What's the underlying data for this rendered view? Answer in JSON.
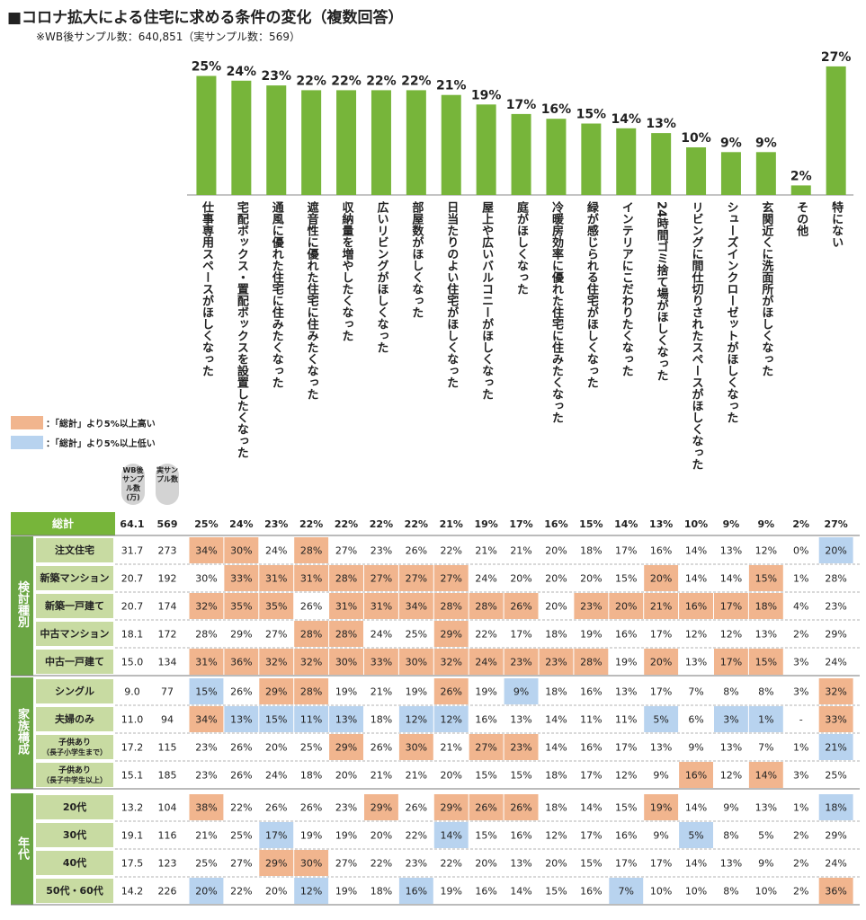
{
  "title": "■コロナ拡大による住宅に求める条件の変化（複数回答）",
  "subtitle": "※WB後サンプル数：640,851（実サンプル数：569）",
  "legend": {
    "high": "：「総計」より5%以上高い",
    "low": "：「総計」より5%以上低い"
  },
  "colors": {
    "bar": "#77b53a",
    "high": "#f1b58e",
    "low": "#b8d3ef",
    "group_band": "#6ba644",
    "row_label": "#c8dba2",
    "total_band": "#77b53a"
  },
  "column_headers": {
    "wb": "WB後サンプル数(万)",
    "actual": "実サンプル数"
  },
  "chart_data": {
    "type": "bar",
    "categories": [
      "仕事専用スペースがほしくなった",
      "宅配ボックス・置配ボックスを設置したくなった",
      "通風に優れた住宅に住みたくなった",
      "遮音性に優れた住宅に住みたくなった",
      "収納量を増やしたくなった",
      "広いリビングがほしくなった",
      "部屋数がほしくなった",
      "日当たりのよい住宅がほしくなった",
      "屋上や広いバルコニーがほしくなった",
      "庭がほしくなった",
      "冷暖房効率に優れた住宅に住みたくなった",
      "緑が感じられる住宅がほしくなった",
      "インテリアにこだわりたくなった",
      "24時間ゴミ捨て場がほしくなった",
      "リビングに間仕切りされたスペースがほしくなった",
      "シューズインクローゼットがほしくなった",
      "玄関近くに洗面所がほしくなった",
      "その他",
      "特にない"
    ],
    "values": [
      25,
      24,
      23,
      22,
      22,
      22,
      22,
      21,
      19,
      17,
      16,
      15,
      14,
      13,
      10,
      9,
      9,
      2,
      27
    ],
    "value_labels": [
      "25%",
      "24%",
      "23%",
      "22%",
      "22%",
      "22%",
      "22%",
      "21%",
      "19%",
      "17%",
      "16%",
      "15%",
      "14%",
      "13%",
      "10%",
      "9%",
      "9%",
      "2%",
      "27%"
    ],
    "ylim": [
      0,
      30
    ]
  },
  "table": {
    "total": {
      "label": "総計",
      "wb": "64.1",
      "n": "569",
      "values": [
        "25%",
        "24%",
        "23%",
        "22%",
        "22%",
        "22%",
        "22%",
        "21%",
        "19%",
        "17%",
        "16%",
        "15%",
        "14%",
        "13%",
        "10%",
        "9%",
        "9%",
        "2%",
        "27%"
      ]
    },
    "groups": [
      {
        "name": "検討種別",
        "rows": [
          {
            "label": "注文住宅",
            "wb": "31.7",
            "n": "273",
            "values": [
              "34%",
              "30%",
              "24%",
              "28%",
              "27%",
              "23%",
              "26%",
              "22%",
              "21%",
              "21%",
              "20%",
              "18%",
              "17%",
              "16%",
              "14%",
              "13%",
              "12%",
              "0%",
              "20%"
            ],
            "marks": [
              "h",
              "h",
              "",
              "h",
              "",
              "",
              "",
              "",
              "",
              "",
              "",
              "",
              "",
              "",
              "",
              "",
              "",
              "",
              "l"
            ]
          },
          {
            "label": "新築マンション",
            "wb": "20.7",
            "n": "192",
            "values": [
              "30%",
              "33%",
              "31%",
              "31%",
              "28%",
              "27%",
              "27%",
              "27%",
              "24%",
              "20%",
              "20%",
              "20%",
              "15%",
              "20%",
              "14%",
              "14%",
              "15%",
              "1%",
              "28%"
            ],
            "marks": [
              "",
              "h",
              "h",
              "h",
              "h",
              "h",
              "h",
              "h",
              "",
              "",
              "",
              "",
              "",
              "h",
              "",
              "",
              "h",
              "",
              ""
            ]
          },
          {
            "label": "新築一戸建て",
            "wb": "20.7",
            "n": "174",
            "values": [
              "32%",
              "35%",
              "35%",
              "26%",
              "31%",
              "31%",
              "34%",
              "28%",
              "28%",
              "26%",
              "20%",
              "23%",
              "20%",
              "21%",
              "16%",
              "17%",
              "18%",
              "4%",
              "23%"
            ],
            "marks": [
              "h",
              "h",
              "h",
              "",
              "h",
              "h",
              "h",
              "h",
              "h",
              "h",
              "",
              "h",
              "h",
              "h",
              "h",
              "h",
              "h",
              "",
              ""
            ]
          },
          {
            "label": "中古マンション",
            "wb": "18.1",
            "n": "172",
            "values": [
              "28%",
              "29%",
              "27%",
              "28%",
              "28%",
              "24%",
              "25%",
              "29%",
              "22%",
              "17%",
              "18%",
              "19%",
              "16%",
              "17%",
              "12%",
              "12%",
              "13%",
              "2%",
              "29%"
            ],
            "marks": [
              "",
              "",
              "",
              "h",
              "h",
              "",
              "",
              "h",
              "",
              "",
              "",
              "",
              "",
              "",
              "",
              "",
              "",
              "",
              ""
            ]
          },
          {
            "label": "中古一戸建て",
            "wb": "15.0",
            "n": "134",
            "values": [
              "31%",
              "36%",
              "32%",
              "32%",
              "30%",
              "33%",
              "30%",
              "32%",
              "24%",
              "23%",
              "23%",
              "28%",
              "19%",
              "20%",
              "13%",
              "17%",
              "15%",
              "3%",
              "24%"
            ],
            "marks": [
              "h",
              "h",
              "h",
              "h",
              "h",
              "h",
              "h",
              "h",
              "h",
              "h",
              "h",
              "h",
              "",
              "h",
              "",
              "h",
              "h",
              "",
              ""
            ]
          }
        ]
      },
      {
        "name": "家族構成",
        "rows": [
          {
            "label": "シングル",
            "wb": "9.0",
            "n": "77",
            "values": [
              "15%",
              "26%",
              "29%",
              "28%",
              "19%",
              "21%",
              "19%",
              "26%",
              "19%",
              "9%",
              "18%",
              "16%",
              "13%",
              "17%",
              "7%",
              "8%",
              "8%",
              "3%",
              "32%"
            ],
            "marks": [
              "l",
              "",
              "h",
              "h",
              "",
              "",
              "",
              "h",
              "",
              "l",
              "",
              "",
              "",
              "",
              "",
              "",
              "",
              "",
              "h"
            ]
          },
          {
            "label": "夫婦のみ",
            "wb": "11.0",
            "n": "94",
            "values": [
              "34%",
              "13%",
              "15%",
              "11%",
              "13%",
              "18%",
              "12%",
              "12%",
              "16%",
              "13%",
              "14%",
              "11%",
              "11%",
              "5%",
              "6%",
              "3%",
              "1%",
              "-",
              "33%"
            ],
            "marks": [
              "h",
              "l",
              "l",
              "l",
              "l",
              "",
              "l",
              "l",
              "",
              "",
              "",
              "",
              "",
              "l",
              "",
              "l",
              "l",
              "",
              "h"
            ]
          },
          {
            "label": "子供あり",
            "sublabel": "（長子小学生まで）",
            "wb": "17.2",
            "n": "115",
            "values": [
              "23%",
              "26%",
              "20%",
              "25%",
              "29%",
              "26%",
              "30%",
              "21%",
              "27%",
              "23%",
              "14%",
              "16%",
              "17%",
              "13%",
              "9%",
              "13%",
              "7%",
              "1%",
              "21%"
            ],
            "marks": [
              "",
              "",
              "",
              "",
              "h",
              "",
              "h",
              "",
              "h",
              "h",
              "",
              "",
              "",
              "",
              "",
              "",
              "",
              "",
              "l"
            ]
          },
          {
            "label": "子供あり",
            "sublabel": "（長子中学生以上）",
            "wb": "15.1",
            "n": "185",
            "values": [
              "23%",
              "26%",
              "24%",
              "18%",
              "20%",
              "21%",
              "21%",
              "20%",
              "15%",
              "15%",
              "18%",
              "17%",
              "12%",
              "9%",
              "16%",
              "12%",
              "14%",
              "3%",
              "25%"
            ],
            "marks": [
              "",
              "",
              "",
              "",
              "",
              "",
              "",
              "",
              "",
              "",
              "",
              "",
              "",
              "",
              "h",
              "",
              "h",
              "",
              ""
            ]
          }
        ]
      },
      {
        "name": "年代",
        "rows": [
          {
            "label": "20代",
            "wb": "13.2",
            "n": "104",
            "values": [
              "38%",
              "22%",
              "26%",
              "26%",
              "23%",
              "29%",
              "26%",
              "29%",
              "26%",
              "26%",
              "18%",
              "14%",
              "15%",
              "19%",
              "14%",
              "9%",
              "13%",
              "1%",
              "18%"
            ],
            "marks": [
              "h",
              "",
              "",
              "",
              "",
              "h",
              "",
              "h",
              "h",
              "h",
              "",
              "",
              "",
              "h",
              "",
              "",
              "",
              "",
              "l"
            ]
          },
          {
            "label": "30代",
            "wb": "19.1",
            "n": "116",
            "values": [
              "21%",
              "25%",
              "17%",
              "19%",
              "19%",
              "20%",
              "22%",
              "14%",
              "15%",
              "16%",
              "12%",
              "17%",
              "16%",
              "9%",
              "5%",
              "8%",
              "5%",
              "2%",
              "29%"
            ],
            "marks": [
              "",
              "",
              "l",
              "",
              "",
              "",
              "",
              "l",
              "",
              "",
              "",
              "",
              "",
              "",
              "l",
              "",
              "",
              "",
              ""
            ]
          },
          {
            "label": "40代",
            "wb": "17.5",
            "n": "123",
            "values": [
              "25%",
              "27%",
              "29%",
              "30%",
              "27%",
              "22%",
              "23%",
              "22%",
              "20%",
              "13%",
              "20%",
              "15%",
              "17%",
              "17%",
              "14%",
              "13%",
              "9%",
              "2%",
              "24%"
            ],
            "marks": [
              "",
              "",
              "h",
              "h",
              "",
              "",
              "",
              "",
              "",
              "",
              "",
              "",
              "",
              "",
              "",
              "",
              "",
              "",
              ""
            ]
          },
          {
            "label": "50代・60代",
            "wb": "14.2",
            "n": "226",
            "values": [
              "20%",
              "22%",
              "20%",
              "12%",
              "19%",
              "18%",
              "16%",
              "19%",
              "16%",
              "14%",
              "15%",
              "16%",
              "7%",
              "10%",
              "10%",
              "8%",
              "10%",
              "2%",
              "36%"
            ],
            "marks": [
              "l",
              "",
              "",
              "l",
              "",
              "",
              "l",
              "",
              "",
              "",
              "",
              "",
              "l",
              "",
              "",
              "",
              "",
              "",
              "h"
            ]
          }
        ]
      }
    ]
  }
}
